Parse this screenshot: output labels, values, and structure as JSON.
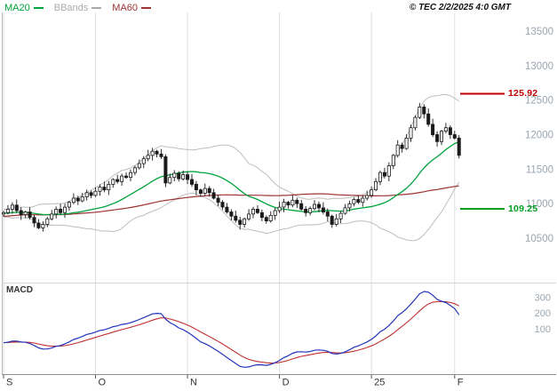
{
  "copyright": "© TEC 2/2/2025 4:0 GMT",
  "legend": {
    "items": [
      {
        "label": "MA20",
        "color": "#00A33C"
      },
      {
        "label": "BBands",
        "color": "#ABABAB"
      },
      {
        "label": "MA60",
        "color": "#9B3332"
      }
    ]
  },
  "chart_data": {
    "type": "candlestick",
    "title": "Daily price chart with MA20, MA60 and Bollinger Bands, MACD sub-panel",
    "price_axis": {
      "ticks": [
        13500,
        13000,
        12500,
        12000,
        11500,
        11000,
        10500
      ],
      "range": [
        9960,
        13770
      ],
      "tick_color": "#9AA5AF"
    },
    "x_labels": [
      {
        "label": "S",
        "index": 0
      },
      {
        "label": "O",
        "index": 21
      },
      {
        "label": "N",
        "index": 42
      },
      {
        "label": "D",
        "index": 63
      },
      {
        "label": "25",
        "index": 84
      },
      {
        "label": "F",
        "index": 103
      }
    ],
    "levels": [
      {
        "label": "125.92",
        "value": 12592,
        "color": "#C00000",
        "role": "resistance"
      },
      {
        "label": "109.25",
        "value": 10925,
        "color": "#00A020",
        "role": "support"
      }
    ],
    "overlays": {
      "ma20": {
        "type": "sma",
        "window": 20,
        "color": "#00A33C"
      },
      "ma60": {
        "type": "sma",
        "window": 60,
        "color": "#9B3332"
      },
      "bbands": {
        "type": "bollinger",
        "window": 20,
        "stdev": 2,
        "color": "#BDBDBD"
      }
    },
    "macd": {
      "label": "MACD",
      "fast": 12,
      "slow": 26,
      "signal": 9,
      "ticks": [
        300,
        200,
        100
      ],
      "macd_color": "#2233BB",
      "signal_color": "#C03030"
    },
    "prior_closes": [
      10600,
      10620,
      10650,
      10630,
      10660,
      10700,
      10680,
      10720,
      10750,
      10730,
      10760,
      10800,
      10780,
      10820,
      10850,
      10830,
      10800,
      10770,
      10800,
      10830,
      10860,
      10840,
      10810,
      10780,
      10760,
      10790,
      10820,
      10850,
      10880,
      10860,
      10830,
      10800,
      10830,
      10860,
      10890,
      10870,
      10840,
      10810,
      10840,
      10870,
      10900,
      10880,
      10850,
      10820,
      10850,
      10880,
      10910,
      10890,
      10860,
      10830,
      10800,
      10830,
      10860,
      10890,
      10870,
      10840,
      10860,
      10880,
      10900,
      10860
    ],
    "candles_ohlc": [
      [
        10850,
        10900,
        10810,
        10870
      ],
      [
        10870,
        10980,
        10845,
        10920
      ],
      [
        10920,
        11020,
        10855,
        10980
      ],
      [
        10980,
        11060,
        10865,
        10900
      ],
      [
        10900,
        10950,
        10765,
        10840
      ],
      [
        10840,
        10900,
        10790,
        10880
      ],
      [
        10880,
        10950,
        10770,
        10800
      ],
      [
        10800,
        10835,
        10660,
        10720
      ],
      [
        10720,
        10775,
        10630,
        10650
      ],
      [
        10650,
        10745,
        10595,
        10700
      ],
      [
        10700,
        10810,
        10660,
        10780
      ],
      [
        10780,
        10910,
        10755,
        10850
      ],
      [
        10850,
        10960,
        10785,
        10920
      ],
      [
        10920,
        11000,
        10835,
        10870
      ],
      [
        10870,
        11000,
        10795,
        10950
      ],
      [
        10950,
        11040,
        10900,
        11020
      ],
      [
        11020,
        11150,
        10990,
        11080
      ],
      [
        11080,
        11115,
        10980,
        11040
      ],
      [
        11040,
        11155,
        11020,
        11100
      ],
      [
        11100,
        11205,
        11045,
        11160
      ],
      [
        11160,
        11190,
        11080,
        11120
      ],
      [
        11120,
        11240,
        11095,
        11180
      ],
      [
        11180,
        11280,
        11115,
        11240
      ],
      [
        11240,
        11320,
        11165,
        11200
      ],
      [
        11200,
        11330,
        11125,
        11280
      ],
      [
        11280,
        11370,
        11230,
        11350
      ],
      [
        11350,
        11420,
        11290,
        11320
      ],
      [
        11320,
        11435,
        11260,
        11400
      ],
      [
        11400,
        11455,
        11360,
        11380
      ],
      [
        11380,
        11495,
        11325,
        11450
      ],
      [
        11450,
        11550,
        11410,
        11520
      ],
      [
        11520,
        11640,
        11495,
        11580
      ],
      [
        11580,
        11690,
        11515,
        11650
      ],
      [
        11650,
        11780,
        11615,
        11700
      ],
      [
        11700,
        11810,
        11625,
        11760
      ],
      [
        11760,
        11780,
        11670,
        11720
      ],
      [
        11720,
        11790,
        11650,
        11680
      ],
      [
        11680,
        11715,
        11240,
        11300
      ],
      [
        11300,
        11435,
        11280,
        11380
      ],
      [
        11380,
        11485,
        11325,
        11440
      ],
      [
        11440,
        11470,
        11320,
        11360
      ],
      [
        11360,
        11480,
        11335,
        11420
      ],
      [
        11420,
        11460,
        11285,
        11350
      ],
      [
        11350,
        11430,
        11245,
        11280
      ],
      [
        11280,
        11330,
        11125,
        11200
      ],
      [
        11200,
        11220,
        11100,
        11150
      ],
      [
        11150,
        11290,
        11120,
        11220
      ],
      [
        11220,
        11255,
        11100,
        11160
      ],
      [
        11160,
        11215,
        11060,
        11080
      ],
      [
        11080,
        11125,
        10965,
        11020
      ],
      [
        11020,
        11050,
        10910,
        10950
      ],
      [
        10950,
        11010,
        10855,
        10880
      ],
      [
        10880,
        10920,
        10755,
        10820
      ],
      [
        10820,
        10900,
        10725,
        10760
      ],
      [
        10760,
        10810,
        10625,
        10700
      ],
      [
        10700,
        10800,
        10650,
        10780
      ],
      [
        10780,
        10920,
        10750,
        10850
      ],
      [
        10850,
        10955,
        10790,
        10920
      ],
      [
        10920,
        10975,
        10850,
        10870
      ],
      [
        10870,
        10915,
        10745,
        10800
      ],
      [
        10800,
        10830,
        10710,
        10750
      ],
      [
        10750,
        10890,
        10725,
        10830
      ],
      [
        10830,
        10940,
        10765,
        10900
      ],
      [
        10900,
        11030,
        10865,
        10950
      ],
      [
        10950,
        11070,
        10875,
        11020
      ],
      [
        11020,
        11040,
        10930,
        10980
      ],
      [
        10980,
        11120,
        10950,
        11050
      ],
      [
        11050,
        11085,
        10940,
        11000
      ],
      [
        11000,
        11055,
        10900,
        10920
      ],
      [
        10920,
        10965,
        10815,
        10870
      ],
      [
        10870,
        10960,
        10830,
        10930
      ],
      [
        10930,
        11050,
        10905,
        10990
      ],
      [
        10990,
        11030,
        10875,
        10940
      ],
      [
        10940,
        11020,
        10845,
        10880
      ],
      [
        10880,
        10930,
        10745,
        10820
      ],
      [
        10820,
        10840,
        10650,
        10700
      ],
      [
        10700,
        10850,
        10670,
        10780
      ],
      [
        10780,
        10895,
        10720,
        10860
      ],
      [
        10860,
        10995,
        10840,
        10940
      ],
      [
        10940,
        11045,
        10885,
        11000
      ],
      [
        11000,
        11090,
        10960,
        11060
      ],
      [
        11060,
        11120,
        10995,
        11020
      ],
      [
        11020,
        11120,
        10955,
        11080
      ],
      [
        11080,
        11185,
        11045,
        11120
      ],
      [
        11120,
        11250,
        11085,
        11200
      ],
      [
        11200,
        11370,
        11180,
        11320
      ],
      [
        11320,
        11480,
        11270,
        11450
      ],
      [
        11450,
        11520,
        11365,
        11400
      ],
      [
        11400,
        11600,
        11325,
        11550
      ],
      [
        11550,
        11720,
        11500,
        11700
      ],
      [
        11700,
        11920,
        11670,
        11850
      ],
      [
        11850,
        11885,
        11740,
        11800
      ],
      [
        11800,
        12005,
        11780,
        11950
      ],
      [
        11950,
        12145,
        11895,
        12100
      ],
      [
        12100,
        12280,
        12060,
        12250
      ],
      [
        12250,
        12460,
        12225,
        12400
      ],
      [
        12400,
        12440,
        12235,
        12300
      ],
      [
        12300,
        12380,
        12115,
        12150
      ],
      [
        12150,
        12230,
        11965,
        12000
      ],
      [
        12000,
        12050,
        11825,
        11900
      ],
      [
        11900,
        12070,
        11850,
        12050
      ],
      [
        12050,
        12170,
        12020,
        12100
      ],
      [
        12100,
        12135,
        11940,
        12000
      ],
      [
        12000,
        12055,
        11930,
        11950
      ],
      [
        11950,
        11995,
        11655,
        11700
      ]
    ]
  }
}
